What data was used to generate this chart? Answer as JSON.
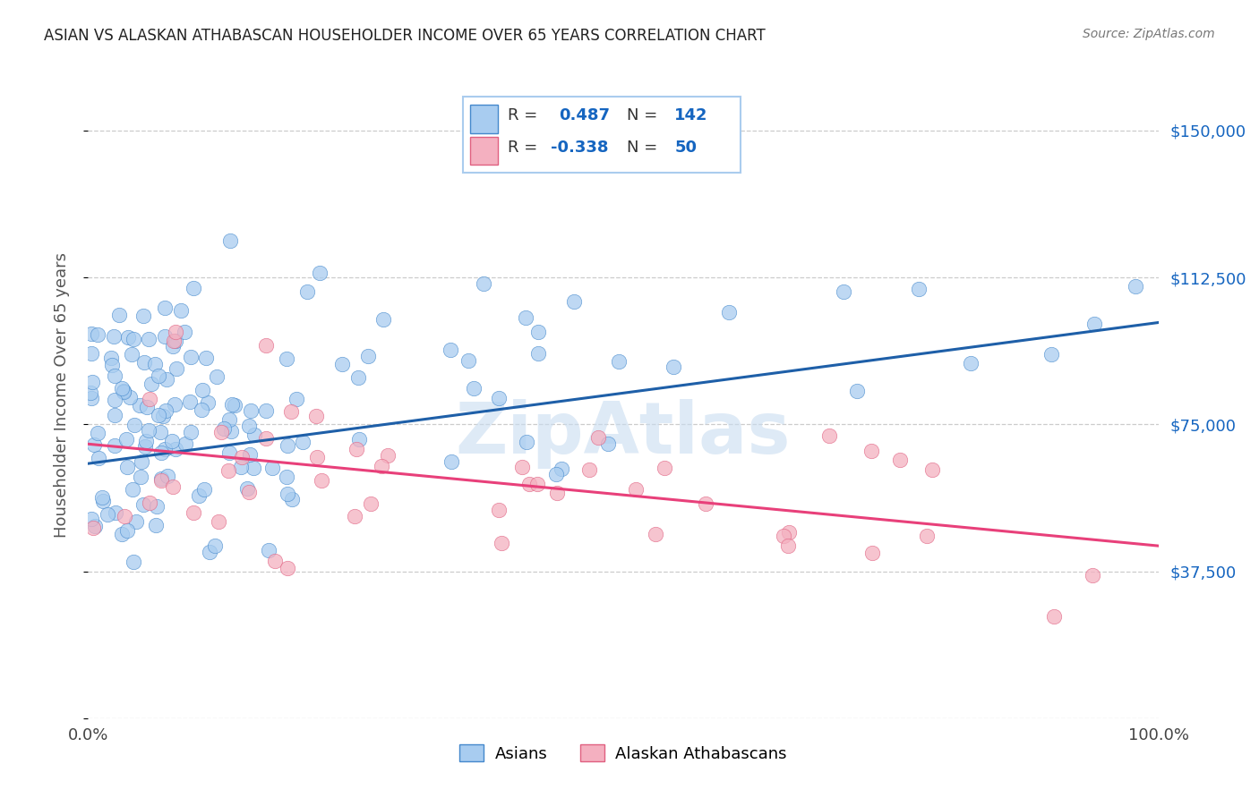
{
  "title": "ASIAN VS ALASKAN ATHABASCAN HOUSEHOLDER INCOME OVER 65 YEARS CORRELATION CHART",
  "source": "Source: ZipAtlas.com",
  "ylabel": "Householder Income Over 65 years",
  "y_ticks": [
    0,
    37500,
    75000,
    112500,
    150000
  ],
  "y_right_labels": [
    "",
    "$37,500",
    "$75,000",
    "$112,500",
    "$150,000"
  ],
  "xlim": [
    0.0,
    1.0
  ],
  "ylim": [
    0,
    165000
  ],
  "blue_R": "0.487",
  "blue_N": "142",
  "pink_R": "-0.338",
  "pink_N": "50",
  "blue_fill": "#A8CCF0",
  "pink_fill": "#F4B0C0",
  "blue_edge": "#4488CC",
  "pink_edge": "#E06080",
  "line_blue_color": "#1E5FA8",
  "line_pink_color": "#E8407A",
  "blue_line_y0": 65000,
  "blue_line_y1": 101000,
  "pink_line_y0": 70000,
  "pink_line_y1": 44000,
  "watermark_text": "ZipAtlas",
  "watermark_color": "#C8DCF0",
  "label_asians": "Asians",
  "label_athabascan": "Alaskan Athabascans",
  "grid_color": "#CCCCCC",
  "label_color_value": "#1565C0",
  "legend_border_color": "#AACCEE",
  "title_color": "#222222",
  "source_color": "#777777",
  "axis_label_color": "#555555",
  "tick_label_color": "#444444"
}
